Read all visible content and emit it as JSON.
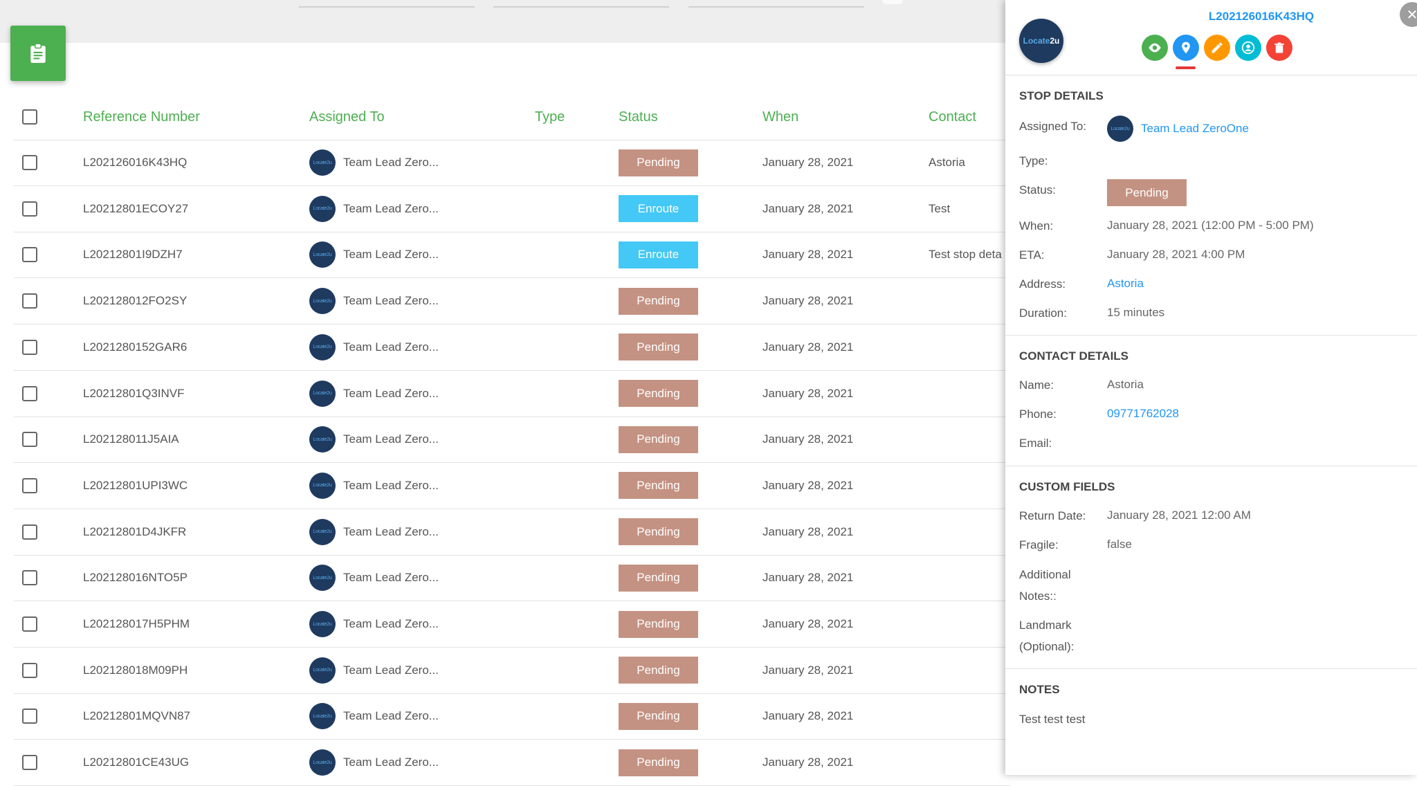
{
  "table": {
    "headers": {
      "reference": "Reference Number",
      "assigned": "Assigned To",
      "type": "Type",
      "status": "Status",
      "when": "When",
      "contact": "Contact"
    },
    "rows": [
      {
        "ref": "L202126016K43HQ",
        "assigned": "Team Lead Zero...",
        "type": "",
        "status": "Pending",
        "status_kind": "pending",
        "when": "January 28, 2021",
        "contact": "Astoria"
      },
      {
        "ref": "L20212801ECOY27",
        "assigned": "Team Lead Zero...",
        "type": "",
        "status": "Enroute",
        "status_kind": "enroute",
        "when": "January 28, 2021",
        "contact": "Test"
      },
      {
        "ref": "L20212801I9DZH7",
        "assigned": "Team Lead Zero...",
        "type": "",
        "status": "Enroute",
        "status_kind": "enroute",
        "when": "January 28, 2021",
        "contact": "Test stop deta"
      },
      {
        "ref": "L202128012FO2SY",
        "assigned": "Team Lead Zero...",
        "type": "",
        "status": "Pending",
        "status_kind": "pending",
        "when": "January 28, 2021",
        "contact": ""
      },
      {
        "ref": "L2021280152GAR6",
        "assigned": "Team Lead Zero...",
        "type": "",
        "status": "Pending",
        "status_kind": "pending",
        "when": "January 28, 2021",
        "contact": ""
      },
      {
        "ref": "L20212801Q3INVF",
        "assigned": "Team Lead Zero...",
        "type": "",
        "status": "Pending",
        "status_kind": "pending",
        "when": "January 28, 2021",
        "contact": ""
      },
      {
        "ref": "L202128011J5AIA",
        "assigned": "Team Lead Zero...",
        "type": "",
        "status": "Pending",
        "status_kind": "pending",
        "when": "January 28, 2021",
        "contact": ""
      },
      {
        "ref": "L20212801UPI3WC",
        "assigned": "Team Lead Zero...",
        "type": "",
        "status": "Pending",
        "status_kind": "pending",
        "when": "January 28, 2021",
        "contact": ""
      },
      {
        "ref": "L20212801D4JKFR",
        "assigned": "Team Lead Zero...",
        "type": "",
        "status": "Pending",
        "status_kind": "pending",
        "when": "January 28, 2021",
        "contact": ""
      },
      {
        "ref": "L202128016NTO5P",
        "assigned": "Team Lead Zero...",
        "type": "",
        "status": "Pending",
        "status_kind": "pending",
        "when": "January 28, 2021",
        "contact": ""
      },
      {
        "ref": "L202128017H5PHM",
        "assigned": "Team Lead Zero...",
        "type": "",
        "status": "Pending",
        "status_kind": "pending",
        "when": "January 28, 2021",
        "contact": ""
      },
      {
        "ref": "L202128018M09PH",
        "assigned": "Team Lead Zero...",
        "type": "",
        "status": "Pending",
        "status_kind": "pending",
        "when": "January 28, 2021",
        "contact": ""
      },
      {
        "ref": "L20212801MQVN87",
        "assigned": "Team Lead Zero...",
        "type": "",
        "status": "Pending",
        "status_kind": "pending",
        "when": "January 28, 2021",
        "contact": ""
      },
      {
        "ref": "L20212801CE43UG",
        "assigned": "Team Lead Zero...",
        "type": "",
        "status": "Pending",
        "status_kind": "pending",
        "when": "January 28, 2021",
        "contact": ""
      }
    ]
  },
  "avatar_text": "Locate2u",
  "colors": {
    "accent_green": "#4caf50",
    "pending": "#c49282",
    "enroute": "#44c8f5",
    "link_blue": "#2196f3"
  },
  "panel": {
    "reference": "L202126016K43HQ",
    "logo_text_a": "Locate",
    "logo_text_b": "2u",
    "close_glyph": "✕",
    "actions": [
      {
        "name": "view-icon",
        "color": "#4caf50"
      },
      {
        "name": "location-pin-icon",
        "color": "#2196f3"
      },
      {
        "name": "edit-pencil-icon",
        "color": "#ff9800"
      },
      {
        "name": "assign-user-icon",
        "color": "#00bcd4"
      },
      {
        "name": "delete-trash-icon",
        "color": "#f44336"
      }
    ],
    "stop_details": {
      "title": "STOP DETAILS",
      "assigned_label": "Assigned To:",
      "assigned_value": "Team Lead ZeroOne",
      "type_label": "Type:",
      "status_label": "Status:",
      "status_value": "Pending",
      "when_label": "When:",
      "when_value": "January 28, 2021 (12:00 PM - 5:00 PM)",
      "eta_label": "ETA:",
      "eta_value": "January 28, 2021 4:00 PM",
      "address_label": "Address:",
      "address_value": "Astoria",
      "duration_label": "Duration:",
      "duration_value": "15 minutes"
    },
    "contact_details": {
      "title": "CONTACT DETAILS",
      "name_label": "Name:",
      "name_value": "Astoria",
      "phone_label": "Phone:",
      "phone_value": "09771762028",
      "email_label": "Email:"
    },
    "custom_fields": {
      "title": "CUSTOM FIELDS",
      "return_label": "Return Date:",
      "return_value": "January 28, 2021 12:00 AM",
      "fragile_label": "Fragile:",
      "fragile_value": "false",
      "notes_label_1": "Additional",
      "notes_label_2": "Notes::",
      "landmark_label_1": "Landmark",
      "landmark_label_2": "(Optional):"
    },
    "notes": {
      "title": "NOTES",
      "text": "Test test test"
    }
  }
}
